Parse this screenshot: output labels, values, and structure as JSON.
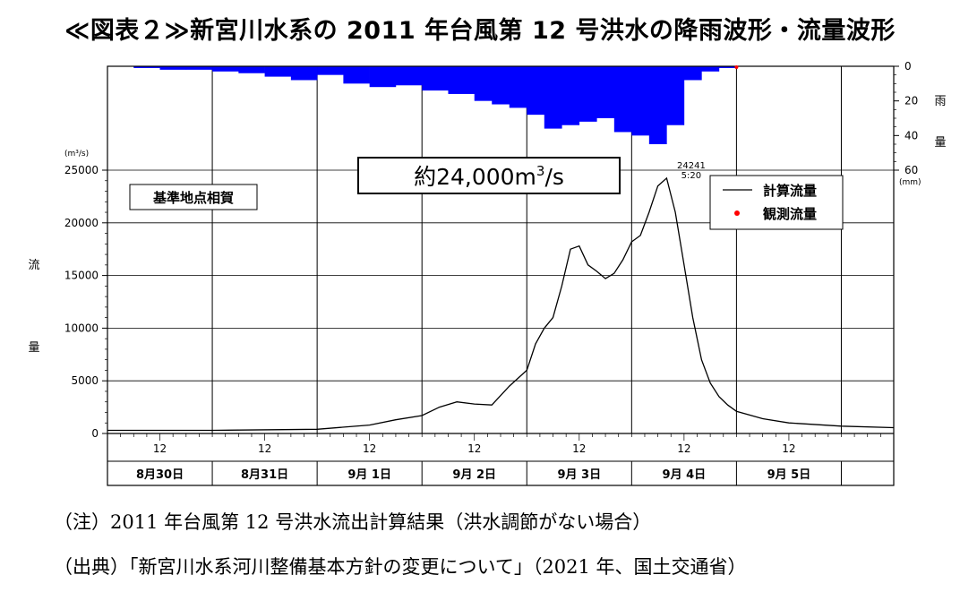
{
  "title": "≪図表２≫新宮川水系の 2011 年台風第 12 号洪水の降雨波形・流量波形",
  "notes": {
    "note1": "（注）2011 年台風第 12 号洪水流出計算結果（洪水調節がない場合）",
    "note2": "（出典）「新宮川水系河川整備基本方針の変更について」（2021 年、国土交通省）"
  },
  "chart_data": {
    "type": "line",
    "station_label": "基準地点相賀",
    "callout": {
      "prefix": "約24,000m",
      "sup": "3",
      "suffix": "/s"
    },
    "peak_annotation": {
      "value": "24241",
      "time": "5:20"
    },
    "y_axis": {
      "unit": "(m³/s)",
      "label_chars": [
        "流",
        "量"
      ],
      "ylim": [
        0,
        25000
      ],
      "ticks": [
        "0",
        "5000",
        "10000",
        "15000",
        "20000",
        "25000"
      ]
    },
    "rain_axis": {
      "unit": "(mm)",
      "label_chars": [
        "雨",
        "量"
      ],
      "ylim": [
        0,
        60
      ],
      "inverted": true,
      "ticks": [
        "0",
        "20",
        "40",
        "60"
      ]
    },
    "x_axis": {
      "range_hours": [
        0,
        180
      ],
      "tick_label": "12",
      "date_labels": [
        "8月30日",
        "8月31日",
        "9月 1日",
        "9月 2日",
        "9月 3日",
        "9月 4日",
        "9月 5日"
      ]
    },
    "legend": {
      "placement": "top-right",
      "entries": [
        {
          "name": "計算流量",
          "symbol": "line",
          "color": "#000000"
        },
        {
          "name": "観測流量",
          "symbol": "dot",
          "color": "#ff0000"
        }
      ]
    },
    "series": {
      "discharge": {
        "color": "#000000",
        "hours": [
          0,
          24,
          48,
          60,
          66,
          72,
          76,
          80,
          84,
          88,
          92,
          96,
          98,
          100,
          102,
          104,
          106,
          108,
          110,
          112,
          114,
          116,
          118,
          120,
          122,
          124,
          126,
          128,
          130,
          132,
          134,
          136,
          138,
          140,
          142,
          144,
          150,
          156,
          168,
          180
        ],
        "values": [
          300,
          300,
          400,
          800,
          1300,
          1700,
          2500,
          3000,
          2800,
          2700,
          4500,
          6000,
          8500,
          10000,
          11000,
          14000,
          17500,
          17800,
          16000,
          15400,
          14700,
          15200,
          16500,
          18200,
          18800,
          21000,
          23500,
          24241,
          21000,
          16000,
          11000,
          7000,
          4800,
          3500,
          2700,
          2100,
          1400,
          1000,
          700,
          550
        ],
        "peak": {
          "hour": 127.5,
          "value": 24241
        }
      },
      "rainfall": {
        "color": "#0000ff",
        "hours": [
          0,
          6,
          12,
          18,
          24,
          30,
          36,
          42,
          48,
          54,
          60,
          66,
          72,
          78,
          84,
          88,
          92,
          96,
          100,
          104,
          108,
          112,
          116,
          120,
          124,
          128,
          132,
          136,
          140,
          144,
          150,
          156,
          168
        ],
        "values": [
          0,
          1,
          2,
          2,
          3,
          4,
          6,
          8,
          5,
          10,
          12,
          11,
          14,
          16,
          20,
          22,
          24,
          28,
          36,
          34,
          32,
          30,
          38,
          40,
          45,
          34,
          8,
          3,
          1,
          0,
          0,
          0,
          0
        ]
      },
      "observed": {
        "color": "#ff0000",
        "hours": [
          144
        ],
        "values": [
          0
        ]
      }
    }
  }
}
